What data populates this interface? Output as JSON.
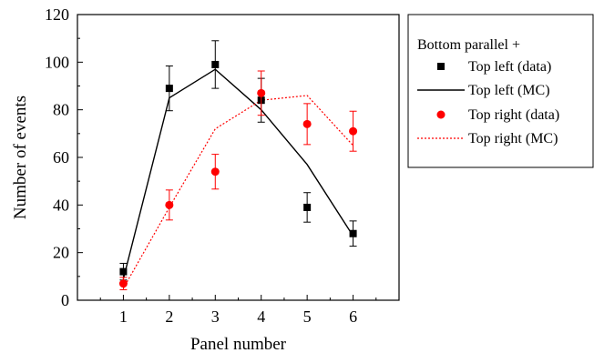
{
  "chart_data": {
    "type": "line",
    "xlabel": "Panel number",
    "ylabel": "Number of events",
    "xlim": [
      0,
      7
    ],
    "ylim": [
      0,
      120
    ],
    "x_ticks": [
      1,
      2,
      3,
      4,
      5,
      6
    ],
    "y_ticks": [
      0,
      20,
      40,
      60,
      80,
      100,
      120
    ],
    "grid": false,
    "legend": {
      "placement": "right-outside",
      "title": "Bottom parallel +",
      "entries": [
        "Top left (data)",
        "Top left (MC)",
        "Top right (data)",
        "Top right (MC)"
      ]
    },
    "series": [
      {
        "name": "Top left (data)",
        "style": "square-markers",
        "color": "#000000",
        "x": [
          1,
          2,
          3,
          4,
          5,
          6
        ],
        "y": [
          12,
          89,
          99,
          84,
          39,
          28
        ],
        "err": [
          3.5,
          9.4,
          10,
          9.2,
          6.2,
          5.3
        ]
      },
      {
        "name": "Top left (MC)",
        "style": "solid-line",
        "color": "#000000",
        "x": [
          1,
          2,
          3,
          4,
          5,
          6
        ],
        "y": [
          9,
          85,
          97,
          80,
          57,
          27
        ]
      },
      {
        "name": "Top right (data)",
        "style": "circle-markers",
        "color": "#ff0000",
        "x": [
          1,
          2,
          3,
          4,
          5,
          6
        ],
        "y": [
          7,
          40,
          54,
          87,
          74,
          71
        ],
        "err": [
          2.6,
          6.3,
          7.3,
          9.3,
          8.6,
          8.4
        ]
      },
      {
        "name": "Top right (MC)",
        "style": "dotted-line",
        "color": "#ff0000",
        "x": [
          1,
          2,
          3,
          4,
          5,
          6
        ],
        "y": [
          5,
          39,
          72,
          84,
          86,
          65
        ]
      }
    ]
  }
}
